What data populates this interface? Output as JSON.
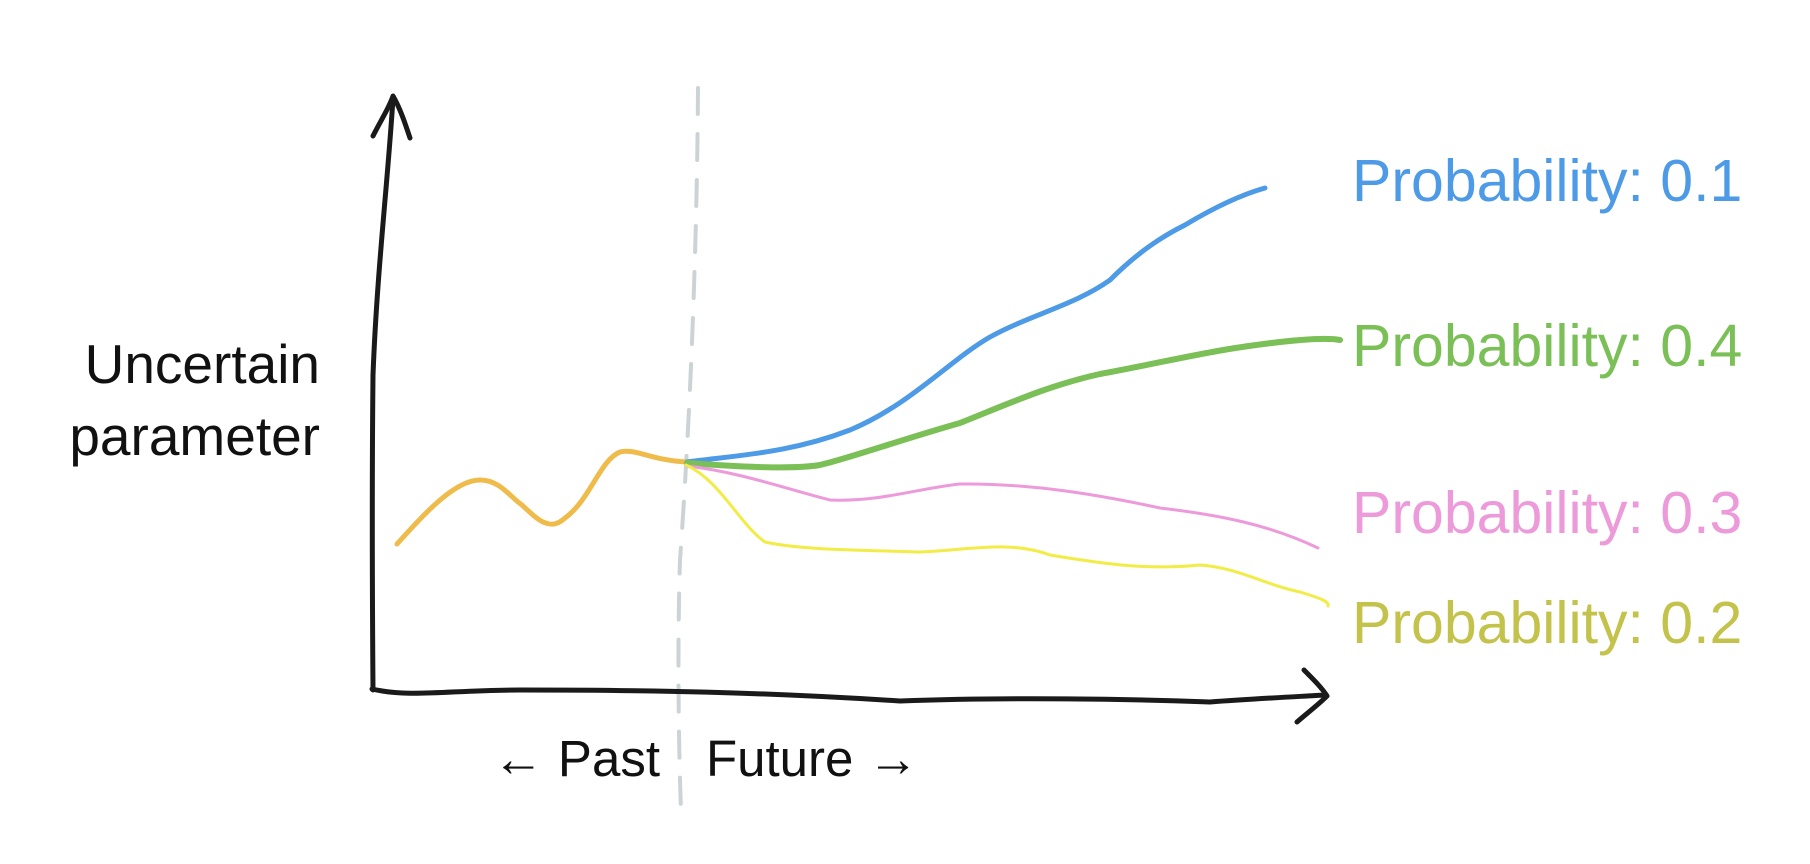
{
  "diagram": {
    "ylabel_lines": [
      "Uncertain",
      "parameter"
    ],
    "xlabels": {
      "past": "← Past",
      "future": "Future →"
    },
    "colors": {
      "axis": "#1a1a1a",
      "divider": "#ccd3d6",
      "history": "#efbb4a"
    },
    "scenarios": [
      {
        "label": "Probability: 0.1",
        "color": "#4d9ae6"
      },
      {
        "label": "Probability: 0.4",
        "color": "#7bbf57"
      },
      {
        "label": "Probability: 0.3",
        "color": "#ec9ad9"
      },
      {
        "label": "Probability: 0.2",
        "color": "#c3c24a"
      }
    ],
    "scenario_line_colors": [
      "#4d9ae6",
      "#7bbf57",
      "#ec9ad9",
      "#f2ec46"
    ]
  }
}
